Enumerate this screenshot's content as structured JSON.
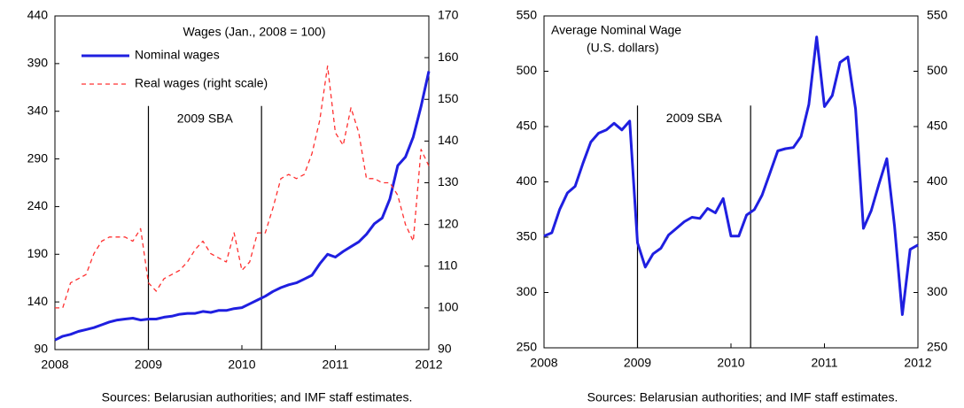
{
  "chart_data": [
    {
      "type": "line",
      "title": "Wages (Jan., 2008 = 100)",
      "annotation": "2009 SBA",
      "source": "Sources: Belarusian authorities; and IMF staff estimates.",
      "x": [
        2008,
        2008.083,
        2008.167,
        2008.25,
        2008.333,
        2008.417,
        2008.5,
        2008.583,
        2008.667,
        2008.75,
        2008.833,
        2008.917,
        2009,
        2009.083,
        2009.167,
        2009.25,
        2009.333,
        2009.417,
        2009.5,
        2009.583,
        2009.667,
        2009.75,
        2009.833,
        2009.917,
        2010,
        2010.083,
        2010.167,
        2010.25,
        2010.333,
        2010.417,
        2010.5,
        2010.583,
        2010.667,
        2010.75,
        2010.833,
        2010.917,
        2011,
        2011.083,
        2011.167,
        2011.25,
        2011.333,
        2011.417,
        2011.5,
        2011.583,
        2011.667,
        2011.75,
        2011.833,
        2011.917,
        2012
      ],
      "series": [
        {
          "name": "Nominal wages",
          "color": "#1f1fe0",
          "style": "solid",
          "values": [
            100,
            104,
            106,
            109,
            111,
            113,
            116,
            119,
            121,
            122,
            123,
            121,
            122,
            122,
            124,
            125,
            127,
            128,
            128,
            130,
            129,
            131,
            131,
            133,
            134,
            138,
            142,
            146,
            151,
            155,
            158,
            160,
            164,
            168,
            180,
            190,
            187,
            193,
            198,
            203,
            211,
            222,
            228,
            248,
            283,
            292,
            313,
            345,
            382
          ]
        },
        {
          "name": "Real wages (right scale)",
          "color": "#ff3030",
          "style": "dashed",
          "axis": "y2",
          "values": [
            100,
            100,
            106,
            107,
            108,
            113,
            116,
            117,
            117,
            117,
            116,
            119,
            106,
            104,
            107,
            108,
            109,
            111,
            114,
            116,
            113,
            112,
            111,
            118,
            109,
            111,
            118,
            118,
            124,
            131,
            132,
            131,
            132,
            137,
            145,
            158,
            142,
            139,
            148,
            142,
            131,
            131,
            130,
            130,
            127,
            120,
            116,
            138,
            134
          ]
        }
      ],
      "vlines": [
        2009,
        2010.21
      ],
      "xlim": [
        2008,
        2012
      ],
      "xticks": [
        2008,
        2009,
        2010,
        2011,
        2012
      ],
      "ylim": [
        90,
        440
      ],
      "yticks": [
        90,
        140,
        190,
        240,
        290,
        340,
        390,
        440
      ],
      "y2lim": [
        90,
        170
      ],
      "y2ticks": [
        90,
        100,
        110,
        120,
        130,
        140,
        150,
        160,
        170
      ]
    },
    {
      "type": "line",
      "title": "Average Nominal Wage",
      "subtitle": "(U.S. dollars)",
      "annotation": "2009 SBA",
      "source": "Sources: Belarusian authorities; and IMF staff estimates.",
      "x": [
        2008,
        2008.083,
        2008.167,
        2008.25,
        2008.333,
        2008.417,
        2008.5,
        2008.583,
        2008.667,
        2008.75,
        2008.833,
        2008.917,
        2009,
        2009.083,
        2009.167,
        2009.25,
        2009.333,
        2009.417,
        2009.5,
        2009.583,
        2009.667,
        2009.75,
        2009.833,
        2009.917,
        2010,
        2010.083,
        2010.167,
        2010.25,
        2010.333,
        2010.417,
        2010.5,
        2010.583,
        2010.667,
        2010.75,
        2010.833,
        2010.917,
        2011,
        2011.083,
        2011.167,
        2011.25,
        2011.333,
        2011.417,
        2011.5,
        2011.583,
        2011.667,
        2011.75,
        2011.833,
        2011.917,
        2012
      ],
      "values": [
        351,
        354,
        375,
        390,
        396,
        417,
        436,
        444,
        447,
        453,
        447,
        455,
        345,
        323,
        335,
        340,
        352,
        358,
        364,
        368,
        367,
        376,
        372,
        385,
        351,
        351,
        370,
        375,
        388,
        408,
        428,
        430,
        431,
        441,
        470,
        531,
        468,
        478,
        508,
        513,
        466,
        358,
        374,
        398,
        421,
        360,
        280,
        339,
        343
      ],
      "color": "#1f1fe0",
      "vlines": [
        2009,
        2010.21
      ],
      "xlim": [
        2008,
        2012
      ],
      "xticks": [
        2008,
        2009,
        2010,
        2011,
        2012
      ],
      "ylim": [
        250,
        550
      ],
      "yticks": [
        250,
        300,
        350,
        400,
        450,
        500,
        550
      ],
      "y2lim": [
        250,
        550
      ],
      "y2ticks": [
        250,
        300,
        350,
        400,
        450,
        500,
        550
      ]
    }
  ]
}
